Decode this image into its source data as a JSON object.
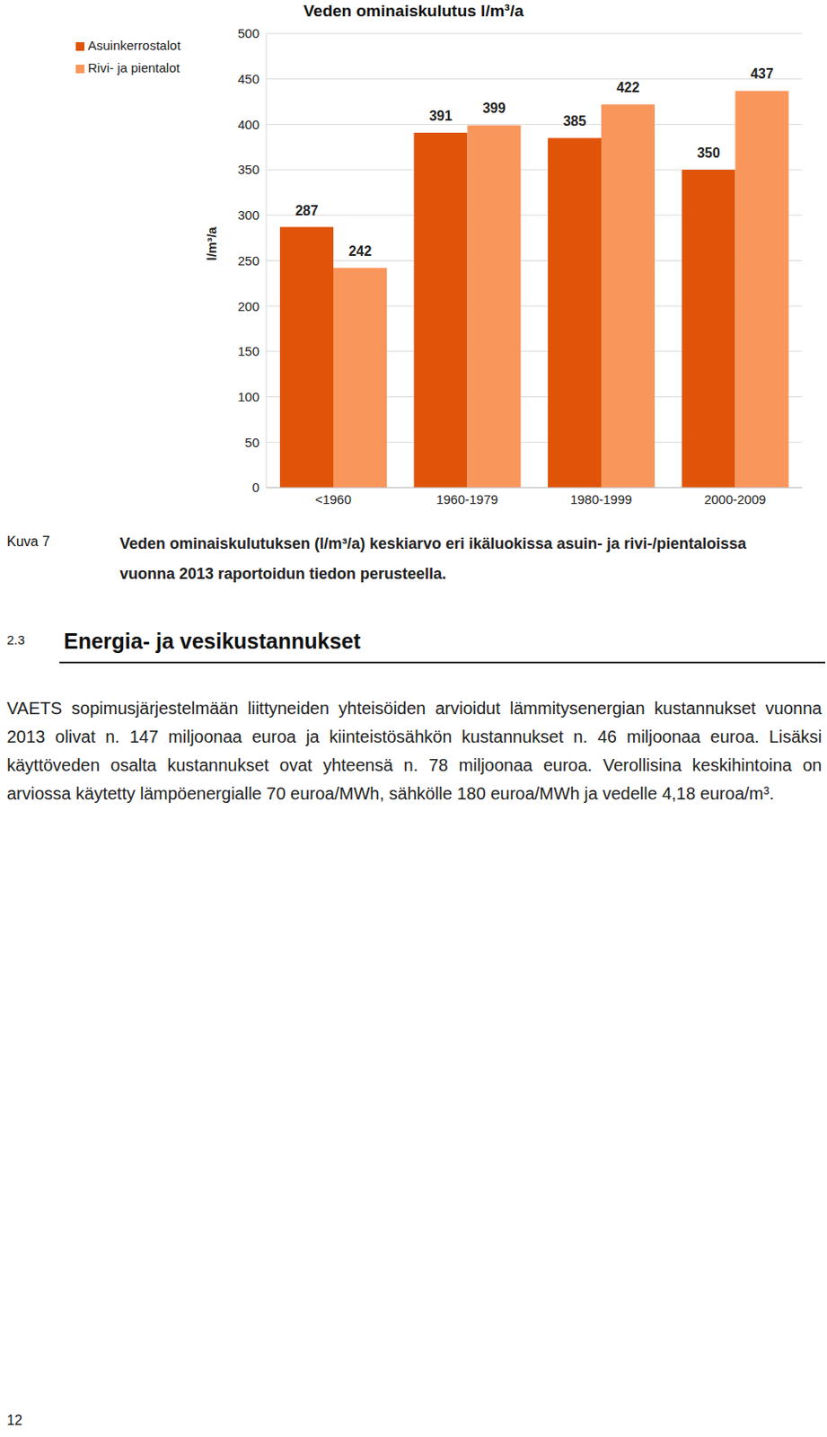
{
  "chart_data": {
    "type": "bar",
    "title": "Veden ominaiskulutus l/m³/a",
    "y_label": "l/m³/a",
    "categories": [
      "<1960",
      "1960-1979",
      "1980-1999",
      "2000-2009"
    ],
    "series": [
      {
        "name": "Asuinkerrostalot",
        "color": "#e0540a",
        "values": [
          287,
          391,
          385,
          350
        ]
      },
      {
        "name": "Rivi- ja pientalot",
        "color": "#f9965c",
        "values": [
          242,
          399,
          422,
          437
        ]
      }
    ],
    "ylim": [
      0,
      500
    ],
    "yticks": [
      0,
      50,
      100,
      150,
      200,
      250,
      300,
      350,
      400,
      450,
      500
    ],
    "grid": true,
    "legend": "upper left",
    "data_labels": true
  },
  "caption": {
    "label": "Kuva 7",
    "text": "Veden ominaiskulutuksen (l/m³/a) keskiarvo eri ikäluokissa asuin- ja rivi-/pientaloissa vuonna 2013 raportoidun tiedon perusteella."
  },
  "section": {
    "number": "2.3",
    "title": "Energia- ja vesikustannukset"
  },
  "paragraph": "VAETS sopimusjärjestelmään liittyneiden yhteisöiden arvioidut lämmitysenergian kustannukset vuonna 2013 olivat n. 147 miljoonaa euroa ja kiinteistösähkön kustannukset n. 46 miljoonaa euroa. Lisäksi käyttöveden osalta kustannukset ovat yhteensä n. 78 miljoonaa euroa. Verollisina keskihintoina on arviossa käytetty lämpöenergialle 70 euroa/MWh, sähkölle 180 euroa/MWh ja vedelle 4,18 euroa/m³.",
  "page_number": "12"
}
